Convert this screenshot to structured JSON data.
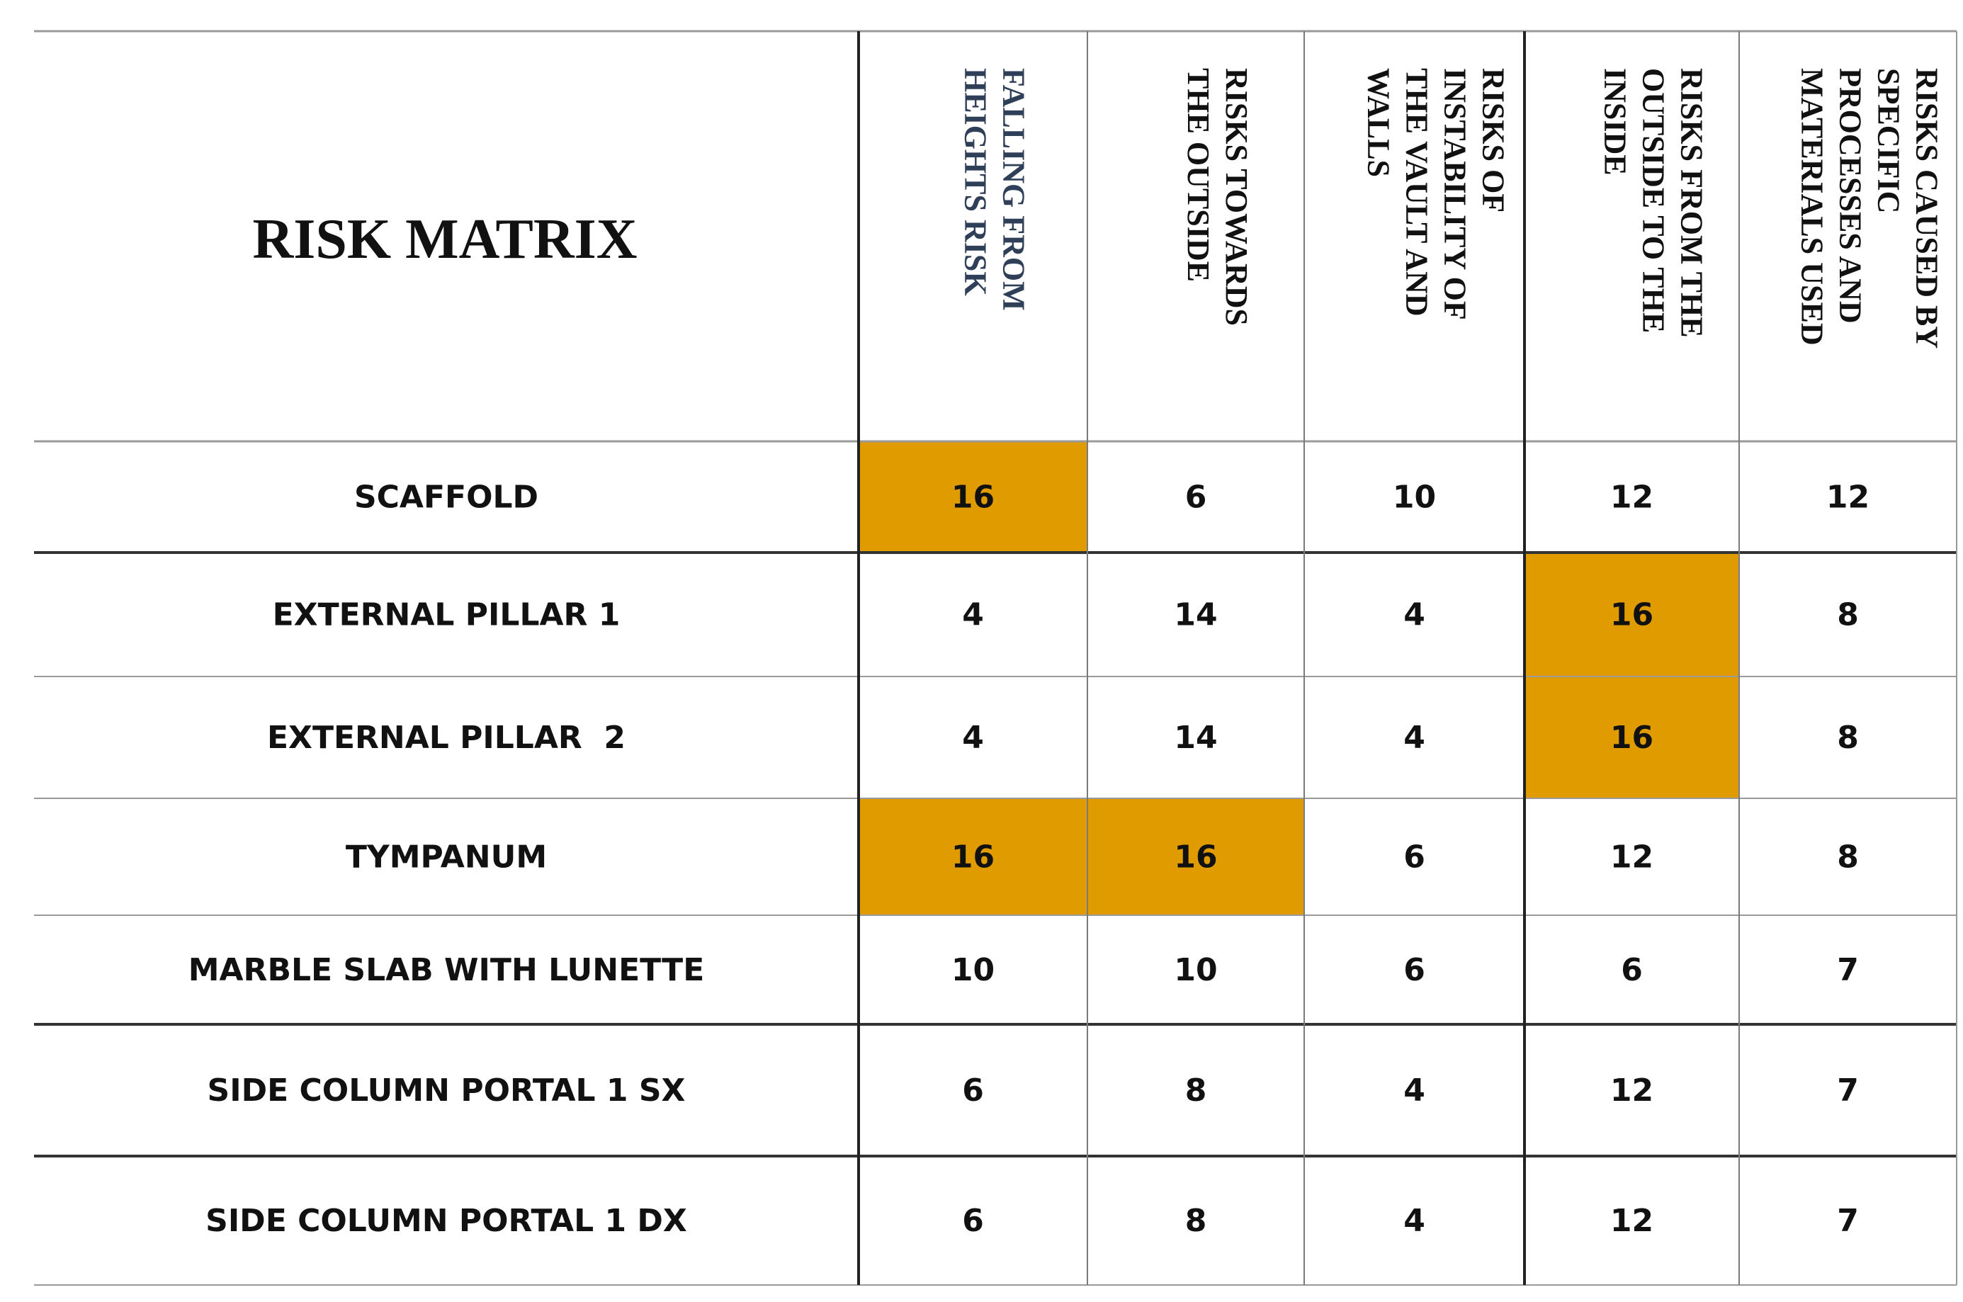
{
  "title": "RISK MATRIX",
  "columns": [
    {
      "lines": [
        "FALLING FROM",
        "HEIGHTS RISK"
      ],
      "color": "#2f3f58"
    },
    {
      "lines": [
        "RISKS TOWARDS",
        "THE OUTSIDE"
      ],
      "color": "#111111"
    },
    {
      "lines": [
        "RISKS OF",
        "INSTABILITY OF",
        "THE VAULT AND",
        "WALLS"
      ],
      "color": "#111111"
    },
    {
      "lines": [
        "RISKS FROM THE",
        "OUTSIDE TO THE",
        "INSIDE"
      ],
      "color": "#111111"
    },
    {
      "lines": [
        "RISKS CAUSED BY",
        "SPECIFIC",
        "PROCESSES AND",
        "MATERIALS USED"
      ],
      "color": "#111111"
    }
  ],
  "rows": [
    {
      "label": "SCAFFOLD",
      "values": [
        "16",
        "6",
        "10",
        "12",
        "12"
      ]
    },
    {
      "label": "EXTERNAL PILLAR 1",
      "values": [
        "4",
        "14",
        "4",
        "16",
        "8"
      ]
    },
    {
      "label": "EXTERNAL PILLAR  2",
      "values": [
        "4",
        "14",
        "4",
        "16",
        "8"
      ]
    },
    {
      "label": "TYMPANUM",
      "values": [
        "16",
        "16",
        "6",
        "12",
        "8"
      ]
    },
    {
      "label": "MARBLE SLAB WITH LUNETTE",
      "values": [
        "10",
        "10",
        "6",
        "6",
        "7"
      ]
    },
    {
      "label": "SIDE COLUMN PORTAL 1 SX",
      "values": [
        "6",
        "8",
        "4",
        "12",
        "7"
      ]
    },
    {
      "label": "SIDE COLUMN PORTAL 1 DX",
      "values": [
        "6",
        "8",
        "4",
        "12",
        "7"
      ]
    }
  ],
  "highlight_value": "16",
  "highlight_color": "#df9b00"
}
